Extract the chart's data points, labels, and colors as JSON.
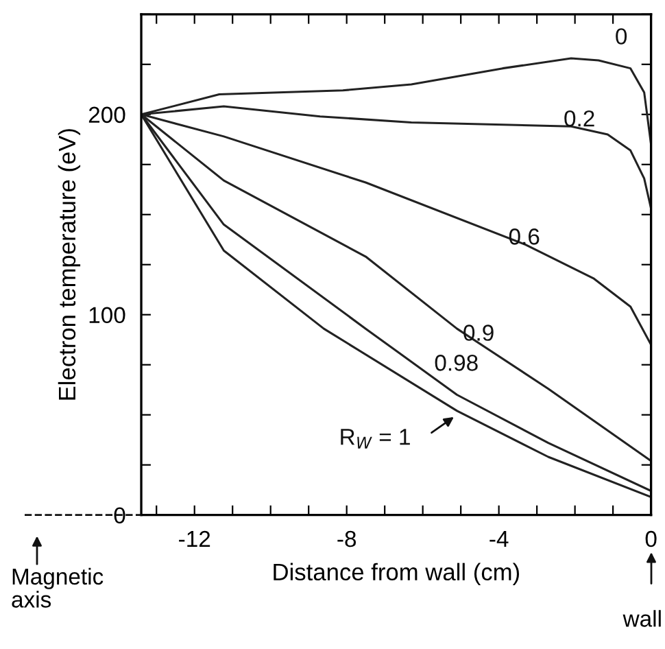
{
  "chart_data": {
    "type": "line",
    "xlabel": "Distance from wall (cm)",
    "ylabel": "Electron temperature (eV)",
    "xlim": [
      -13.4,
      0
    ],
    "ylim": [
      0,
      250
    ],
    "xticks": [
      {
        "value": -13,
        "label": null
      },
      {
        "value": -12,
        "label": "-12"
      },
      {
        "value": -11,
        "label": null
      },
      {
        "value": -10,
        "label": null
      },
      {
        "value": -9,
        "label": null
      },
      {
        "value": -8,
        "label": "-8"
      },
      {
        "value": -7,
        "label": null
      },
      {
        "value": -6,
        "label": null
      },
      {
        "value": -5,
        "label": null
      },
      {
        "value": -4,
        "label": "-4"
      },
      {
        "value": -3,
        "label": null
      },
      {
        "value": -2,
        "label": null
      },
      {
        "value": -1,
        "label": null
      },
      {
        "value": 0,
        "label": "0"
      }
    ],
    "yticks": [
      0,
      {
        "value": 25,
        "label": null
      },
      {
        "value": 50,
        "label": null
      },
      {
        "value": 75,
        "label": null
      },
      100,
      {
        "value": 125,
        "label": null
      },
      {
        "value": 150,
        "label": null
      },
      {
        "value": 175,
        "label": null
      },
      200,
      {
        "value": 225,
        "label": null
      },
      {
        "value": 250,
        "label": null
      }
    ],
    "grid": false,
    "legend": false,
    "marker": "none",
    "line_style": "solid",
    "series": [
      {
        "name": "0",
        "color": "#222222",
        "x": [
          -13.4,
          -11.35,
          -8.1,
          -6.3,
          -3.9,
          -2.1,
          -1.38,
          -0.54,
          -0.18,
          0
        ],
        "values": [
          200,
          210,
          212,
          215,
          223,
          228,
          227,
          223,
          211,
          185
        ]
      },
      {
        "name": "0.2",
        "color": "#222222",
        "x": [
          -13.4,
          -11.23,
          -8.7,
          -6.3,
          -2.1,
          -1.14,
          -0.54,
          -0.18,
          0
        ],
        "values": [
          200,
          204,
          199,
          196,
          194,
          190,
          182,
          168,
          153
        ]
      },
      {
        "name": "0.6",
        "color": "#222222",
        "x": [
          -13.4,
          -11.23,
          -7.5,
          -3.3,
          -1.5,
          -0.54,
          0
        ],
        "values": [
          200,
          189,
          166,
          135,
          118,
          104,
          85
        ]
      },
      {
        "name": "0.9",
        "color": "#222222",
        "x": [
          -13.4,
          -11.23,
          -7.5,
          -5.1,
          -2.7,
          0
        ],
        "values": [
          200,
          167,
          129,
          93,
          63,
          27
        ]
      },
      {
        "name": "0.98",
        "color": "#222222",
        "x": [
          -13.4,
          -11.23,
          -7.5,
          -5.1,
          -2.7,
          0
        ],
        "values": [
          200,
          145,
          93,
          60,
          36,
          12
        ]
      },
      {
        "name": "R$_{W}$ = 1",
        "color": "#222222",
        "x": [
          -13.4,
          -11.23,
          -8.6,
          -5.1,
          -2.7,
          0
        ],
        "values": [
          200,
          132,
          93,
          52,
          29,
          9
        ]
      }
    ],
    "annotations": [
      "Magnetic\naxis",
      "wall"
    ]
  }
}
